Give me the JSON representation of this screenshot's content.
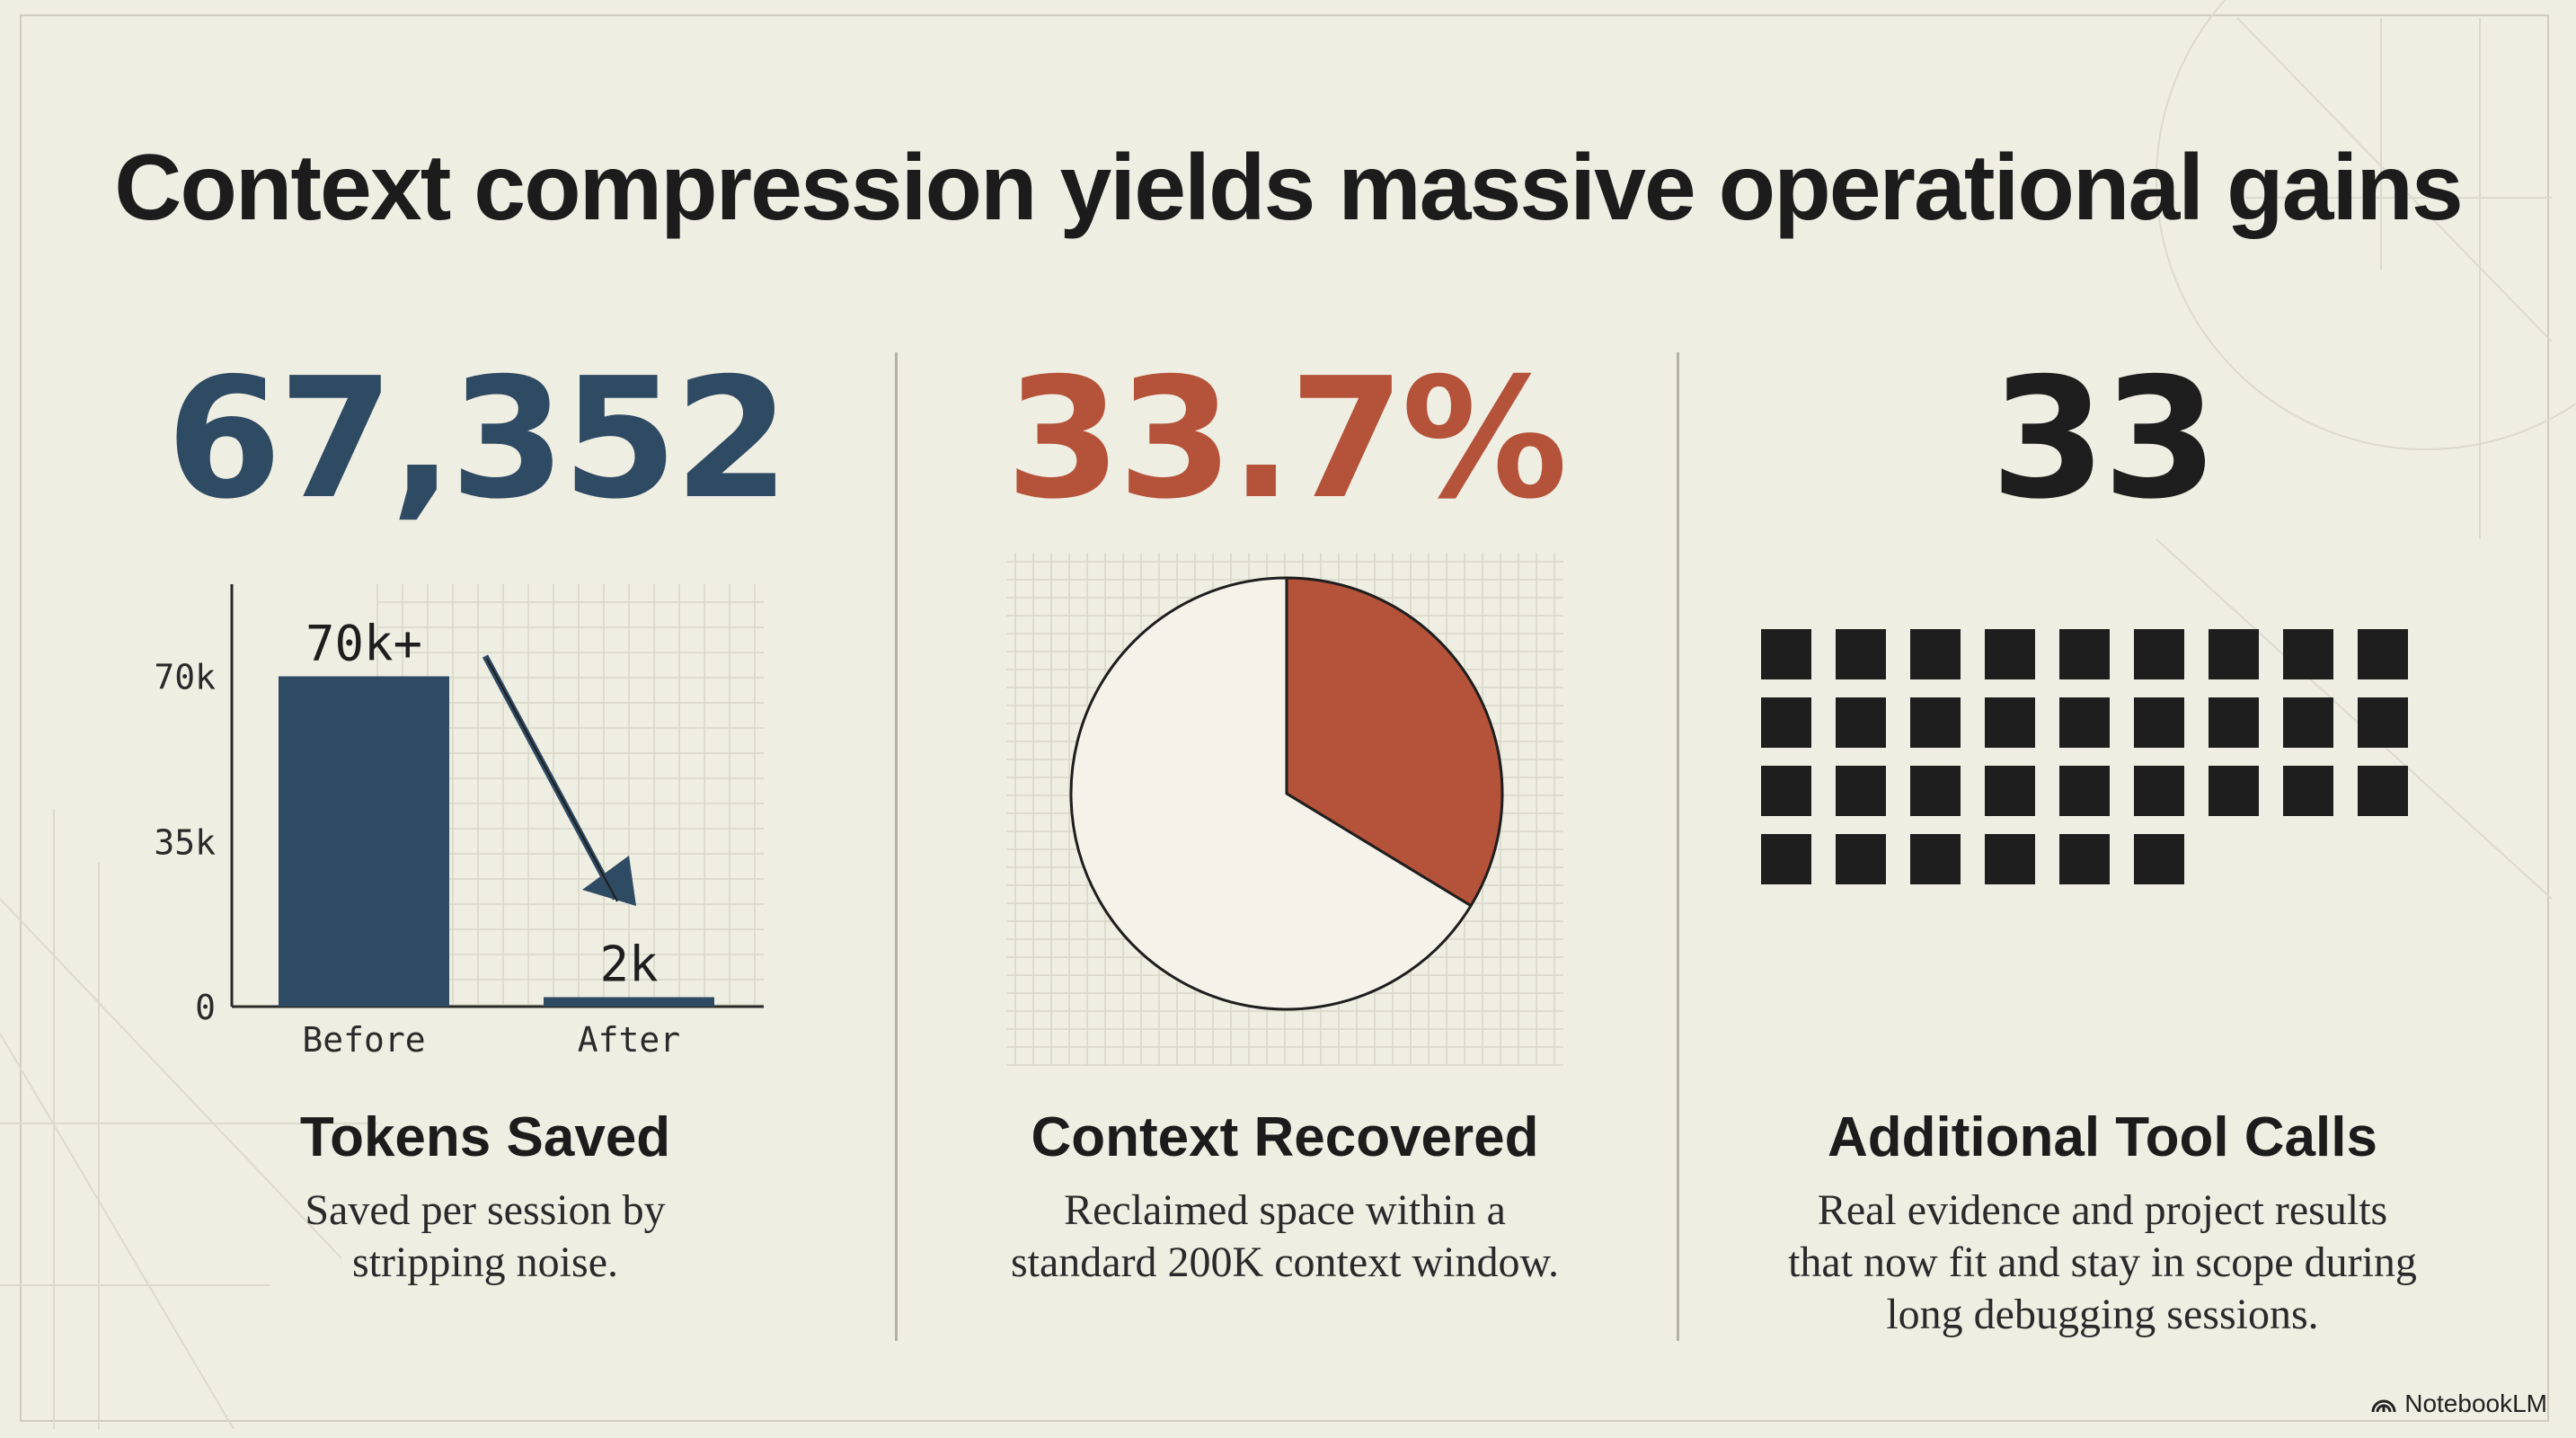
{
  "title": "Context compression yields massive operational gains",
  "colors": {
    "blue": "#2f4a63",
    "red": "#b5523a",
    "dark": "#1e1e1e",
    "bg": "#efeee3"
  },
  "panels": [
    {
      "big_number": "67,352",
      "caption": "Tokens Saved",
      "description_lines": [
        "Saved per session by",
        "stripping noise."
      ]
    },
    {
      "big_number": "33.7%",
      "caption": "Context Recovered",
      "description_lines": [
        "Reclaimed space within a",
        "standard 200K context window."
      ]
    },
    {
      "big_number": "33",
      "caption": "Additional Tool Calls",
      "description_lines": [
        "Real evidence and project results",
        "that now fit and stay in scope during",
        "long debugging sessions."
      ]
    }
  ],
  "chart_data": [
    {
      "type": "bar",
      "categories": [
        "Before",
        "After"
      ],
      "values": [
        70000,
        2000
      ],
      "data_labels": [
        "70k+",
        "2k"
      ],
      "yticks": [
        "0",
        "35k",
        "70k"
      ],
      "ylim": [
        0,
        80000
      ],
      "grid": true,
      "annotation": "arrow-from-before-to-after"
    },
    {
      "type": "pie",
      "values": [
        33.7,
        66.3
      ],
      "slice_colors": [
        "#b5523a",
        "#f4f2e9"
      ],
      "grid": true
    },
    {
      "type": "waffle",
      "count": 33,
      "columns": 9,
      "color": "#1e1e1e"
    }
  ],
  "branding": {
    "label": "NotebookLM",
    "icon": "notebooklm-icon"
  }
}
